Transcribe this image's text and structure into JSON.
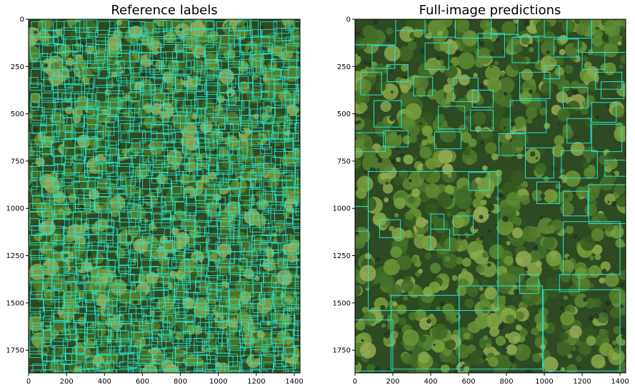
{
  "panels": [
    {
      "title": "Reference labels",
      "box_color": "#26e6d2",
      "xticks": [
        0,
        200,
        400,
        600,
        800,
        1000,
        1200,
        1400
      ],
      "yticks": [
        0,
        250,
        500,
        750,
        1000,
        1250,
        1500,
        1750
      ],
      "xlim": [
        0,
        1430
      ],
      "ylim": [
        1870,
        0
      ],
      "boxes_description": "dense grid of small tree crown boxes"
    },
    {
      "title": "Full-image predictions",
      "box_color": "#26e6d2",
      "xticks": [
        0,
        200,
        400,
        600,
        800,
        1000,
        1200,
        1400
      ],
      "yticks": [
        0,
        250,
        500,
        750,
        1000,
        1250,
        1500,
        1750
      ],
      "xlim": [
        0,
        1430
      ],
      "ylim": [
        1870,
        0
      ],
      "boxes": [
        [
          0,
          0,
          215,
          135
        ],
        [
          215,
          0,
          370,
          60
        ],
        [
          370,
          0,
          530,
          95
        ],
        [
          530,
          0,
          720,
          100
        ],
        [
          720,
          0,
          860,
          80
        ],
        [
          860,
          0,
          1000,
          90
        ],
        [
          1000,
          0,
          1120,
          95
        ],
        [
          1120,
          0,
          1250,
          100
        ],
        [
          1250,
          0,
          1430,
          175
        ],
        [
          90,
          140,
          210,
          260
        ],
        [
          370,
          125,
          495,
          265
        ],
        [
          650,
          75,
          790,
          200
        ],
        [
          830,
          95,
          970,
          230
        ],
        [
          1050,
          105,
          1180,
          200
        ],
        [
          1200,
          175,
          1320,
          265
        ],
        [
          30,
          280,
          140,
          400
        ],
        [
          170,
          240,
          280,
          330
        ],
        [
          310,
          305,
          410,
          405
        ],
        [
          520,
          310,
          650,
          435
        ],
        [
          620,
          375,
          730,
          465
        ],
        [
          1000,
          245,
          1080,
          315
        ],
        [
          1270,
          280,
          1410,
          370
        ],
        [
          870,
          280,
          1030,
          420
        ],
        [
          1100,
          360,
          1230,
          470
        ],
        [
          1300,
          330,
          1420,
          420
        ],
        [
          1250,
          440,
          1380,
          545
        ],
        [
          100,
          430,
          245,
          570
        ],
        [
          440,
          460,
          580,
          580
        ],
        [
          610,
          480,
          730,
          590
        ],
        [
          820,
          430,
          1010,
          600
        ],
        [
          1120,
          525,
          1245,
          655
        ],
        [
          1250,
          555,
          1410,
          700
        ],
        [
          0,
          600,
          160,
          700
        ],
        [
          150,
          590,
          280,
          675
        ],
        [
          420,
          595,
          560,
          685
        ],
        [
          760,
          605,
          900,
          720
        ],
        [
          900,
          680,
          1050,
          840
        ],
        [
          1090,
          695,
          1280,
          840
        ],
        [
          1320,
          745,
          1430,
          830
        ],
        [
          70,
          805,
          755,
          1540
        ],
        [
          600,
          810,
          710,
          905
        ],
        [
          960,
          860,
          1080,
          975
        ],
        [
          1100,
          910,
          1230,
          1040
        ],
        [
          1235,
          875,
          1430,
          1080
        ],
        [
          0,
          990,
          70,
          1120
        ],
        [
          130,
          1060,
          240,
          1155
        ],
        [
          400,
          1030,
          470,
          1110
        ],
        [
          520,
          1040,
          625,
          1140
        ],
        [
          400,
          1110,
          500,
          1220
        ],
        [
          1100,
          1070,
          1400,
          1350
        ],
        [
          1080,
          1350,
          1185,
          1440
        ],
        [
          870,
          1350,
          970,
          1450
        ],
        [
          190,
          1460,
          550,
          1850
        ],
        [
          550,
          1410,
          990,
          1850
        ],
        [
          995,
          1430,
          1400,
          1860
        ],
        [
          0,
          1590,
          200,
          1860
        ]
      ]
    }
  ]
}
